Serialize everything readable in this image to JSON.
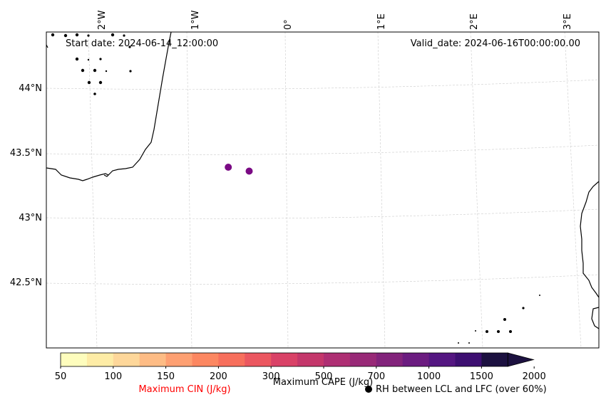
{
  "header": {
    "start_date": "Start date: 2024-06-14_12:00:00",
    "valid_date": "Valid_date: 2024-06-16T00:00:00.00"
  },
  "map": {
    "longitude_labels": [
      "2°W",
      "1°W",
      "0°",
      "1°E",
      "2°E",
      "3°E"
    ],
    "latitude_labels": [
      "44°N",
      "43.5°N",
      "43°N",
      "42.5°N"
    ],
    "rh_markers": [
      {
        "lat": 43.39,
        "lon": -0.63,
        "color": "#7a0a84"
      },
      {
        "lat": 43.36,
        "lon": -0.41,
        "color": "#7a0a84"
      }
    ],
    "land_color": "#ffffff",
    "coast_color": "#000000",
    "grid_color": "#cccccc"
  },
  "colorbar": {
    "tick_labels": [
      "50",
      "100",
      "150",
      "200",
      "300",
      "500",
      "700",
      "1000",
      "1500",
      "2000"
    ],
    "colors": [
      "#fefdbd",
      "#feeca6",
      "#fed79a",
      "#febc85",
      "#fea072",
      "#fc8761",
      "#f76f5c",
      "#eb5760",
      "#d94267",
      "#c4376b",
      "#ae2f73",
      "#982977",
      "#82237b",
      "#6b1c80",
      "#541681",
      "#3d0f71",
      "#1c1140"
    ],
    "cape_label": "Maximum CAPE (J/kg)",
    "cin_label": "Maximum CIN (J/kg)",
    "cin_color": "#ff0000",
    "rh_label": "RH between LCL and LFC (over 60%)"
  }
}
